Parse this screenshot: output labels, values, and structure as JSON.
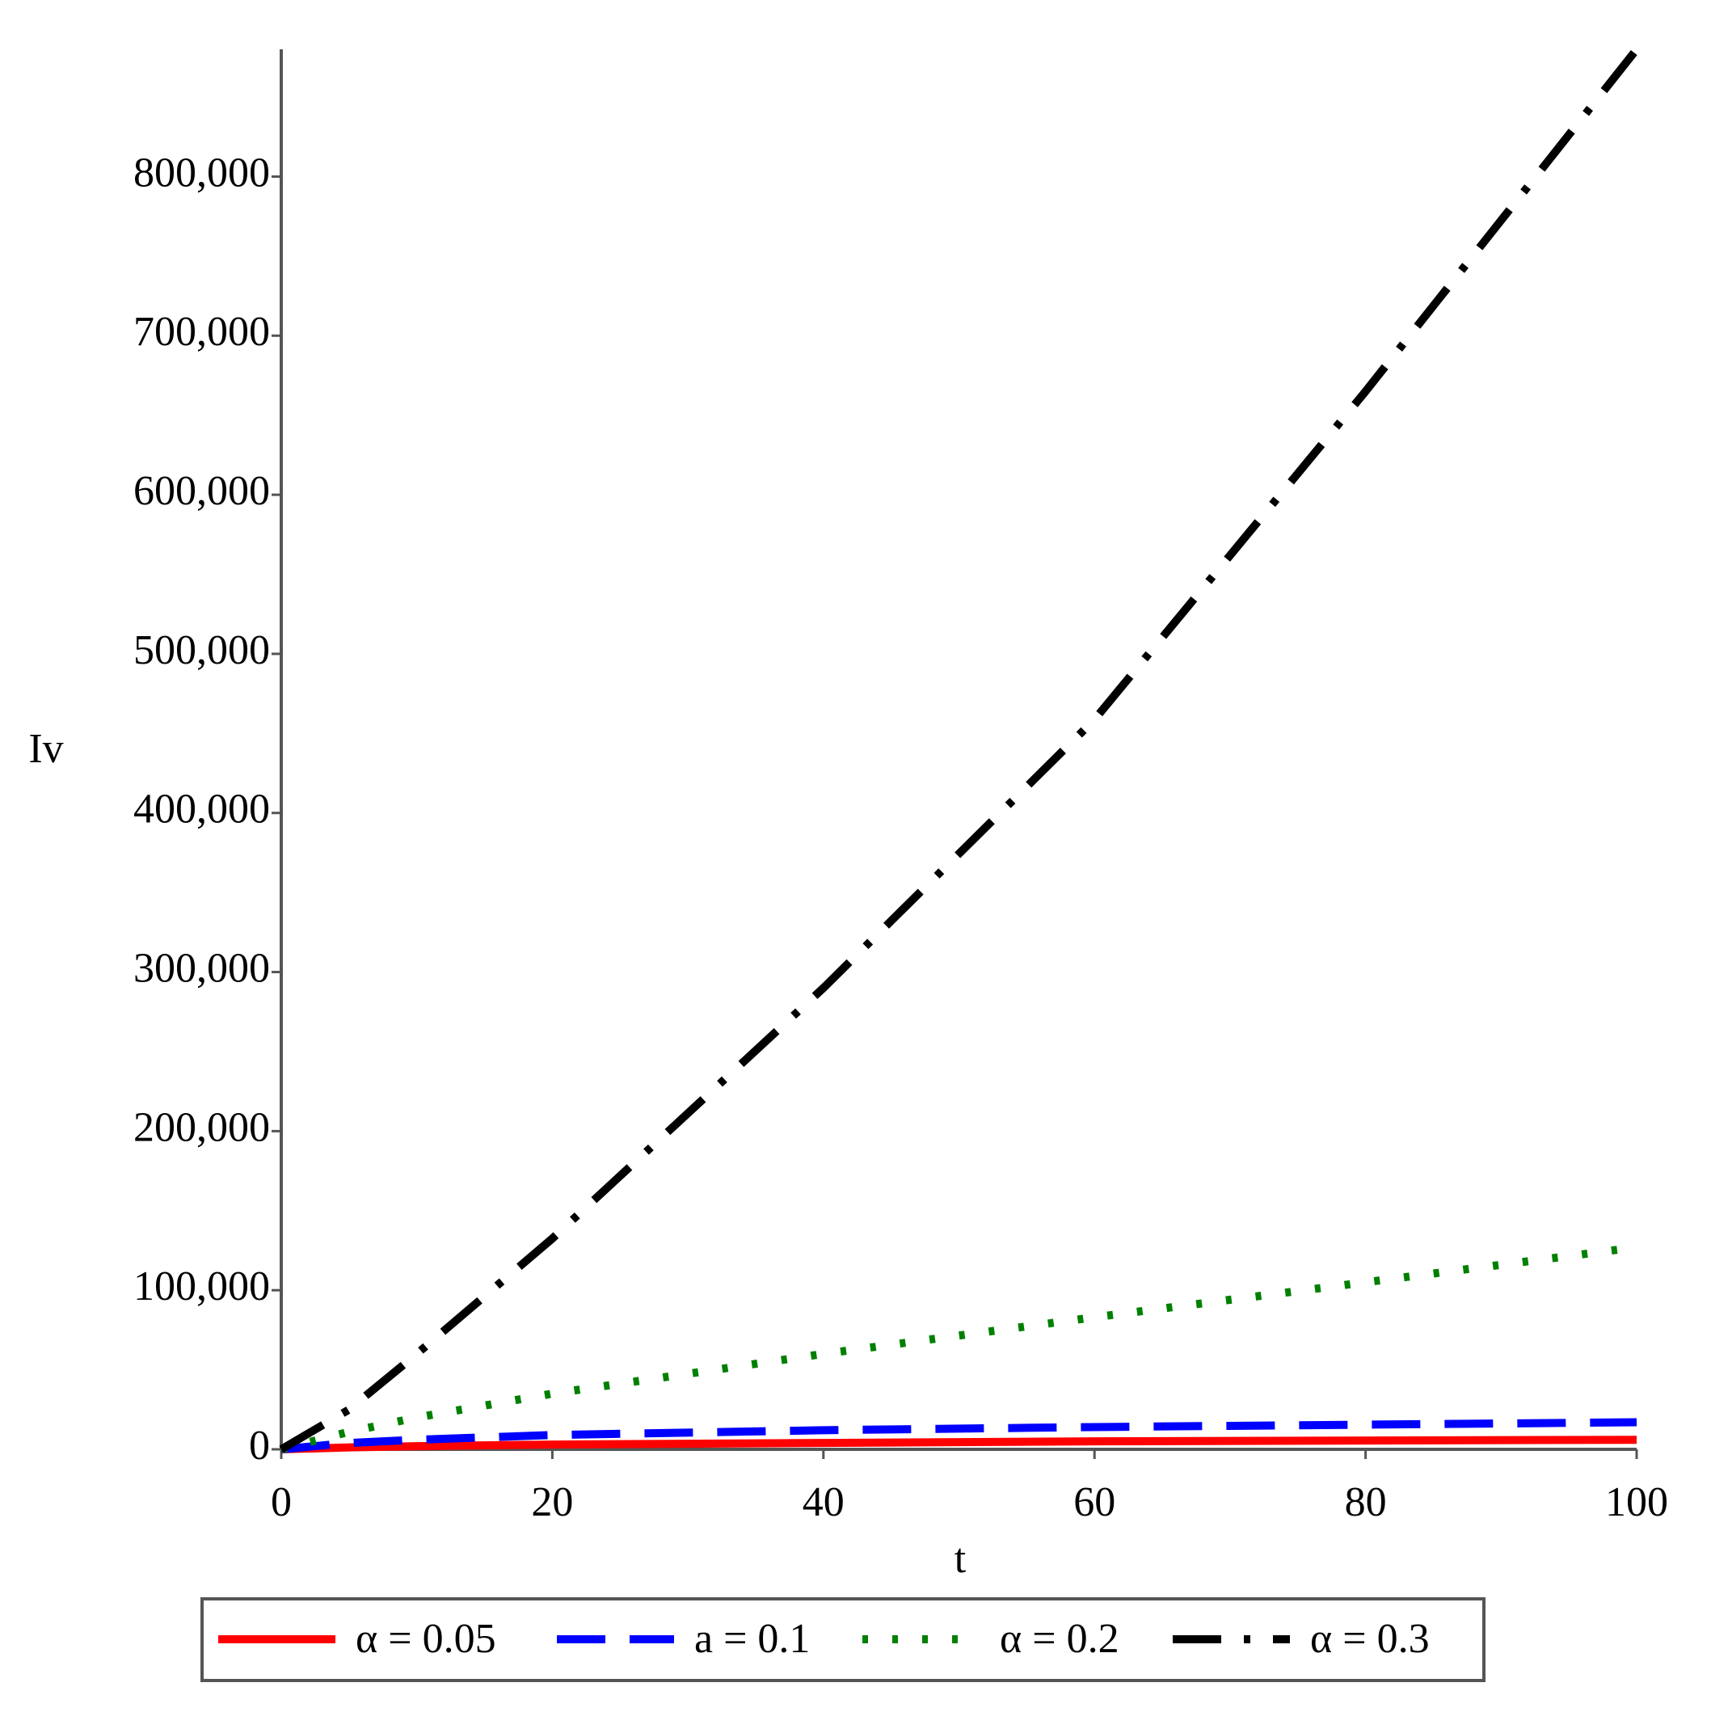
{
  "chart_data": {
    "type": "line",
    "xlabel": "t",
    "ylabel": "Iv",
    "xlim": [
      0,
      100
    ],
    "ylim": [
      0,
      880000
    ],
    "xticks": [
      0,
      20,
      40,
      60,
      80,
      100
    ],
    "yticks": [
      0,
      {
        "value": 100000,
        "label": "100,000"
      },
      {
        "value": 200000,
        "label": "200,000"
      },
      {
        "value": 300000,
        "label": "300,000"
      },
      {
        "value": 400000,
        "label": "400,000"
      },
      {
        "value": 500000,
        "label": "500,000"
      },
      {
        "value": 600000,
        "label": "600,000"
      },
      {
        "value": 700000,
        "label": "700,000"
      },
      {
        "value": 800000,
        "label": "800,000"
      }
    ],
    "x": [
      0,
      5,
      10,
      20,
      40,
      60,
      80,
      100
    ],
    "legend": "bottom",
    "series": [
      {
        "name": "α = 0.05",
        "color": "#ff0000",
        "style": "solid",
        "values": [
          0,
          1200,
          2000,
          3000,
          4000,
          5000,
          5500,
          6000
        ]
      },
      {
        "name": "a = 0.1",
        "color": "#0000ff",
        "style": "dash",
        "values": [
          0,
          4000,
          6000,
          9000,
          12000,
          14000,
          15500,
          17000
        ]
      },
      {
        "name": "α = 0.2",
        "color": "#008000",
        "style": "dot",
        "values": [
          0,
          11000,
          20000,
          35000,
          60000,
          83000,
          105000,
          127000
        ]
      },
      {
        "name": "α = 0.3",
        "color": "#000000",
        "style": "dashdot",
        "values": [
          0,
          25000,
          60000,
          132500,
          290000,
          458700,
          665000,
          880000
        ]
      }
    ]
  }
}
